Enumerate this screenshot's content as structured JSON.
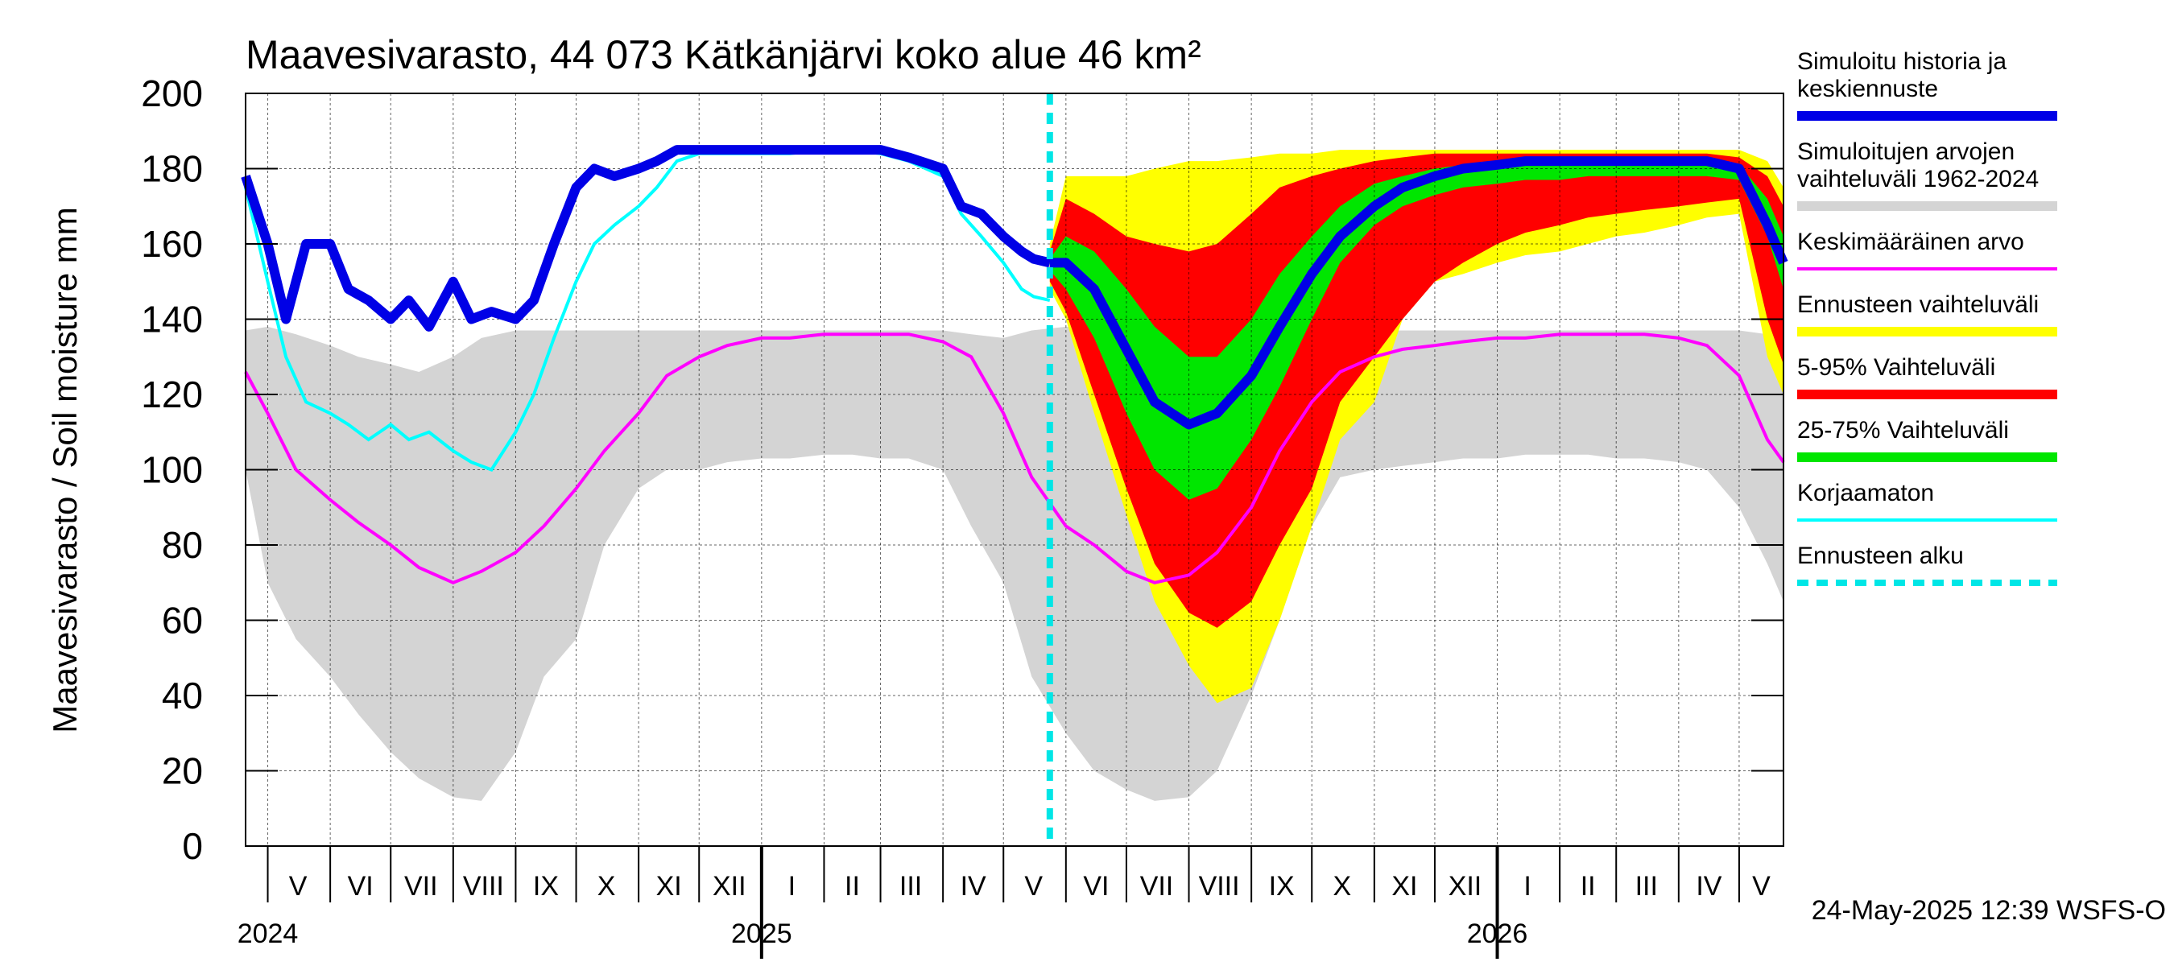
{
  "chart_data": {
    "type": "area",
    "title": "Maavesivarasto, 44 073 Kätkänjärvi koko alue 46 km²",
    "ylabel": "Maavesivarasto / Soil moisture   mm",
    "ylim": [
      0,
      200
    ],
    "yticks": [
      0,
      20,
      40,
      60,
      80,
      100,
      120,
      140,
      160,
      180,
      200
    ],
    "xlim": [
      "2024-04-20",
      "2026-05-23"
    ],
    "grid": true,
    "legend_position": "right",
    "forecast_start": "2025-05-24",
    "footer": "24-May-2025 12:39 WSFS-O",
    "month_labels": [
      {
        "label": "V",
        "date": "2024-05-16"
      },
      {
        "label": "VI",
        "date": "2024-06-16"
      },
      {
        "label": "VII",
        "date": "2024-07-16"
      },
      {
        "label": "VIII",
        "date": "2024-08-16"
      },
      {
        "label": "IX",
        "date": "2024-09-16"
      },
      {
        "label": "X",
        "date": "2024-10-16"
      },
      {
        "label": "XI",
        "date": "2024-11-16"
      },
      {
        "label": "XII",
        "date": "2024-12-16"
      },
      {
        "label": "I",
        "date": "2025-01-16"
      },
      {
        "label": "II",
        "date": "2025-02-15"
      },
      {
        "label": "III",
        "date": "2025-03-16"
      },
      {
        "label": "IV",
        "date": "2025-04-16"
      },
      {
        "label": "V",
        "date": "2025-05-16"
      },
      {
        "label": "VI",
        "date": "2025-06-16"
      },
      {
        "label": "VII",
        "date": "2025-07-16"
      },
      {
        "label": "VIII",
        "date": "2025-08-16"
      },
      {
        "label": "IX",
        "date": "2025-09-16"
      },
      {
        "label": "X",
        "date": "2025-10-16"
      },
      {
        "label": "XI",
        "date": "2025-11-16"
      },
      {
        "label": "XII",
        "date": "2025-12-16"
      },
      {
        "label": "I",
        "date": "2026-01-16"
      },
      {
        "label": "II",
        "date": "2026-02-15"
      },
      {
        "label": "III",
        "date": "2026-03-16"
      },
      {
        "label": "IV",
        "date": "2026-04-16"
      },
      {
        "label": "V",
        "date": "2026-05-12"
      }
    ],
    "year_labels": [
      {
        "label": "2024",
        "date": "2024-05-01"
      },
      {
        "label": "2025",
        "date": "2025-01-01"
      },
      {
        "label": "2026",
        "date": "2026-01-01"
      }
    ],
    "legend": [
      {
        "label": "Simuloitu historia ja\nkeskiennuste",
        "color": "#0000e6",
        "style": "line"
      },
      {
        "label": "Simuloitujen arvojen\nvaihteluväli 1962-2024",
        "color": "#d4d4d4",
        "style": "line"
      },
      {
        "label": "Keskimääräinen arvo",
        "color": "#ff00ff",
        "style": "thin-line"
      },
      {
        "label": "Ennusteen vaihteluväli",
        "color": "#ffff00",
        "style": "line"
      },
      {
        "label": "5-95% Vaihteluväli",
        "color": "#ff0000",
        "style": "line"
      },
      {
        "label": "25-75% Vaihteluväli",
        "color": "#00e600",
        "style": "line"
      },
      {
        "label": "Korjaamaton",
        "color": "#00ffff",
        "style": "thin-line"
      },
      {
        "label": "Ennusteen alku",
        "color": "#00e6e6",
        "style": "dashed"
      }
    ],
    "series": {
      "hist_range": {
        "x": [
          "2024-04-20",
          "2024-05-01",
          "2024-05-15",
          "2024-06-01",
          "2024-06-15",
          "2024-07-01",
          "2024-07-15",
          "2024-08-01",
          "2024-08-15",
          "2024-09-01",
          "2024-09-15",
          "2024-10-01",
          "2024-10-15",
          "2024-11-01",
          "2024-11-15",
          "2024-12-01",
          "2024-12-15",
          "2025-01-01",
          "2025-01-15",
          "2025-02-01",
          "2025-02-15",
          "2025-03-01",
          "2025-03-15",
          "2025-04-01",
          "2025-04-15",
          "2025-05-01",
          "2025-05-15",
          "2025-06-01",
          "2025-06-15",
          "2025-07-01",
          "2025-07-15",
          "2025-08-01",
          "2025-08-15",
          "2025-09-01",
          "2025-09-15",
          "2025-10-01",
          "2025-10-15",
          "2025-11-01",
          "2025-11-15",
          "2025-12-01",
          "2025-12-15",
          "2026-01-01",
          "2026-01-15",
          "2026-02-01",
          "2026-02-15",
          "2026-03-01",
          "2026-03-15",
          "2026-04-01",
          "2026-04-15",
          "2026-05-01",
          "2026-05-15",
          "2026-05-23"
        ],
        "low": [
          100,
          70,
          55,
          45,
          35,
          25,
          18,
          13,
          12,
          25,
          45,
          55,
          80,
          95,
          100,
          100,
          102,
          103,
          103,
          104,
          104,
          103,
          103,
          100,
          85,
          70,
          45,
          30,
          20,
          15,
          12,
          13,
          20,
          40,
          60,
          85,
          98,
          100,
          101,
          102,
          103,
          103,
          104,
          104,
          104,
          103,
          103,
          102,
          100,
          90,
          75,
          65
        ],
        "high": [
          137,
          138,
          136,
          133,
          130,
          128,
          126,
          130,
          135,
          137,
          137,
          137,
          137,
          137,
          137,
          137,
          137,
          137,
          137,
          137,
          137,
          137,
          137,
          137,
          136,
          135,
          137,
          138,
          138,
          137,
          137,
          137,
          137,
          137,
          137,
          137,
          137,
          137,
          137,
          137,
          137,
          137,
          137,
          137,
          137,
          137,
          137,
          137,
          137,
          137,
          136,
          130
        ]
      },
      "mean": {
        "x": [
          "2024-04-20",
          "2024-05-01",
          "2024-05-15",
          "2024-06-01",
          "2024-06-15",
          "2024-07-01",
          "2024-07-15",
          "2024-08-01",
          "2024-08-15",
          "2024-09-01",
          "2024-09-15",
          "2024-10-01",
          "2024-10-15",
          "2024-11-01",
          "2024-11-15",
          "2024-12-01",
          "2024-12-15",
          "2025-01-01",
          "2025-01-15",
          "2025-02-01",
          "2025-02-15",
          "2025-03-01",
          "2025-03-15",
          "2025-04-01",
          "2025-04-15",
          "2025-05-01",
          "2025-05-15",
          "2025-06-01",
          "2025-06-15",
          "2025-07-01",
          "2025-07-15",
          "2025-08-01",
          "2025-08-15",
          "2025-09-01",
          "2025-09-15",
          "2025-10-01",
          "2025-10-15",
          "2025-11-01",
          "2025-11-15",
          "2025-12-01",
          "2025-12-15",
          "2026-01-01",
          "2026-01-15",
          "2026-02-01",
          "2026-02-15",
          "2026-03-01",
          "2026-03-15",
          "2026-04-01",
          "2026-04-15",
          "2026-05-01",
          "2026-05-15",
          "2026-05-23"
        ],
        "values": [
          126,
          115,
          100,
          92,
          86,
          80,
          74,
          70,
          73,
          78,
          85,
          95,
          105,
          115,
          125,
          130,
          133,
          135,
          135,
          136,
          136,
          136,
          136,
          134,
          130,
          115,
          98,
          85,
          80,
          73,
          70,
          72,
          78,
          90,
          105,
          118,
          126,
          130,
          132,
          133,
          134,
          135,
          135,
          136,
          136,
          136,
          136,
          135,
          133,
          125,
          108,
          102
        ]
      },
      "simulated": {
        "x": [
          "2024-04-20",
          "2024-05-01",
          "2024-05-10",
          "2024-05-20",
          "2024-06-01",
          "2024-06-10",
          "2024-06-20",
          "2024-07-01",
          "2024-07-10",
          "2024-07-20",
          "2024-08-01",
          "2024-08-10",
          "2024-08-20",
          "2024-09-01",
          "2024-09-10",
          "2024-09-20",
          "2024-10-01",
          "2024-10-10",
          "2024-10-20",
          "2024-11-01",
          "2024-11-10",
          "2024-11-20",
          "2024-12-01",
          "2024-12-15",
          "2025-01-01",
          "2025-01-15",
          "2025-02-01",
          "2025-02-15",
          "2025-03-01",
          "2025-03-15",
          "2025-04-01",
          "2025-04-10",
          "2025-04-20",
          "2025-05-01",
          "2025-05-10",
          "2025-05-16",
          "2025-05-24"
        ],
        "values": [
          178,
          160,
          140,
          160,
          160,
          148,
          145,
          140,
          145,
          138,
          150,
          140,
          142,
          140,
          145,
          160,
          175,
          180,
          178,
          180,
          182,
          185,
          185,
          185,
          185,
          185,
          185,
          185,
          185,
          183,
          180,
          170,
          168,
          162,
          158,
          156,
          155
        ]
      },
      "uncorrected": {
        "x": [
          "2024-04-20",
          "2024-05-01",
          "2024-05-10",
          "2024-05-20",
          "2024-06-01",
          "2024-06-10",
          "2024-06-20",
          "2024-07-01",
          "2024-07-10",
          "2024-07-20",
          "2024-08-01",
          "2024-08-10",
          "2024-08-20",
          "2024-09-01",
          "2024-09-10",
          "2024-09-20",
          "2024-10-01",
          "2024-10-10",
          "2024-10-20",
          "2024-11-01",
          "2024-11-10",
          "2024-11-20",
          "2024-12-01",
          "2024-12-15",
          "2025-01-01",
          "2025-01-15",
          "2025-02-01",
          "2025-02-15",
          "2025-03-01",
          "2025-03-15",
          "2025-04-01",
          "2025-04-10",
          "2025-04-20",
          "2025-05-01",
          "2025-05-10",
          "2025-05-16",
          "2025-05-24"
        ],
        "values": [
          175,
          150,
          130,
          118,
          115,
          112,
          108,
          112,
          108,
          110,
          105,
          102,
          100,
          110,
          120,
          135,
          150,
          160,
          165,
          170,
          175,
          182,
          184,
          184,
          184,
          184,
          185,
          185,
          184,
          182,
          178,
          168,
          162,
          155,
          148,
          146,
          145
        ]
      },
      "forecast_full": {
        "x": [
          "2025-05-24",
          "2025-06-01",
          "2025-06-15",
          "2025-07-01",
          "2025-07-15",
          "2025-08-01",
          "2025-08-15",
          "2025-09-01",
          "2025-09-15",
          "2025-10-01",
          "2025-10-15",
          "2025-11-01",
          "2025-11-15",
          "2025-12-01",
          "2025-12-15",
          "2026-01-01",
          "2026-01-15",
          "2026-02-01",
          "2026-02-15",
          "2026-03-01",
          "2026-03-15",
          "2026-04-01",
          "2026-04-15",
          "2026-05-01",
          "2026-05-15",
          "2026-05-23"
        ],
        "low": [
          148,
          140,
          115,
          88,
          65,
          48,
          38,
          42,
          60,
          85,
          108,
          118,
          140,
          150,
          152,
          155,
          157,
          158,
          160,
          162,
          163,
          165,
          167,
          168,
          130,
          120
        ],
        "high": [
          160,
          178,
          178,
          178,
          180,
          182,
          182,
          183,
          184,
          184,
          185,
          185,
          185,
          185,
          185,
          185,
          185,
          185,
          185,
          185,
          185,
          185,
          185,
          185,
          182,
          175
        ]
      },
      "forecast_5_95": {
        "x": [
          "2025-05-24",
          "2025-06-01",
          "2025-06-15",
          "2025-07-01",
          "2025-07-15",
          "2025-08-01",
          "2025-08-15",
          "2025-09-01",
          "2025-09-15",
          "2025-10-01",
          "2025-10-15",
          "2025-11-01",
          "2025-11-15",
          "2025-12-01",
          "2025-12-15",
          "2026-01-01",
          "2026-01-15",
          "2026-02-01",
          "2026-02-15",
          "2026-03-01",
          "2026-03-15",
          "2026-04-01",
          "2026-04-15",
          "2026-05-01",
          "2026-05-15",
          "2026-05-23"
        ],
        "low": [
          150,
          142,
          120,
          95,
          75,
          62,
          58,
          65,
          80,
          95,
          118,
          130,
          140,
          150,
          155,
          160,
          163,
          165,
          167,
          168,
          169,
          170,
          171,
          172,
          140,
          128
        ],
        "high": [
          158,
          172,
          168,
          162,
          160,
          158,
          160,
          168,
          175,
          178,
          180,
          182,
          183,
          184,
          184,
          184,
          184,
          184,
          184,
          184,
          184,
          184,
          184,
          183,
          178,
          170
        ]
      },
      "forecast_25_75": {
        "x": [
          "2025-05-24",
          "2025-06-01",
          "2025-06-15",
          "2025-07-01",
          "2025-07-15",
          "2025-08-01",
          "2025-08-15",
          "2025-09-01",
          "2025-09-15",
          "2025-10-01",
          "2025-10-15",
          "2025-11-01",
          "2025-11-15",
          "2025-12-01",
          "2025-12-15",
          "2026-01-01",
          "2026-01-15",
          "2026-02-01",
          "2026-02-15",
          "2026-03-01",
          "2026-03-15",
          "2026-04-01",
          "2026-04-15",
          "2026-05-01",
          "2026-05-15",
          "2026-05-23"
        ],
        "low": [
          153,
          148,
          135,
          115,
          100,
          92,
          95,
          108,
          122,
          140,
          155,
          165,
          170,
          173,
          175,
          176,
          177,
          177,
          178,
          178,
          178,
          178,
          178,
          177,
          162,
          148
        ],
        "high": [
          156,
          162,
          158,
          148,
          138,
          130,
          130,
          140,
          152,
          162,
          170,
          176,
          178,
          180,
          181,
          182,
          182,
          182,
          182,
          182,
          182,
          182,
          182,
          181,
          172,
          162
        ]
      },
      "forecast_median": {
        "x": [
          "2025-05-24",
          "2025-06-01",
          "2025-06-15",
          "2025-07-01",
          "2025-07-15",
          "2025-08-01",
          "2025-08-15",
          "2025-09-01",
          "2025-09-15",
          "2025-10-01",
          "2025-10-15",
          "2025-11-01",
          "2025-11-15",
          "2025-12-01",
          "2025-12-15",
          "2026-01-01",
          "2026-01-15",
          "2026-02-01",
          "2026-02-15",
          "2026-03-01",
          "2026-03-15",
          "2026-04-01",
          "2026-04-15",
          "2026-05-01",
          "2026-05-15",
          "2026-05-23"
        ],
        "values": [
          155,
          155,
          148,
          132,
          118,
          112,
          115,
          125,
          138,
          152,
          162,
          170,
          175,
          178,
          180,
          181,
          182,
          182,
          182,
          182,
          182,
          182,
          182,
          180,
          165,
          155
        ]
      }
    }
  }
}
